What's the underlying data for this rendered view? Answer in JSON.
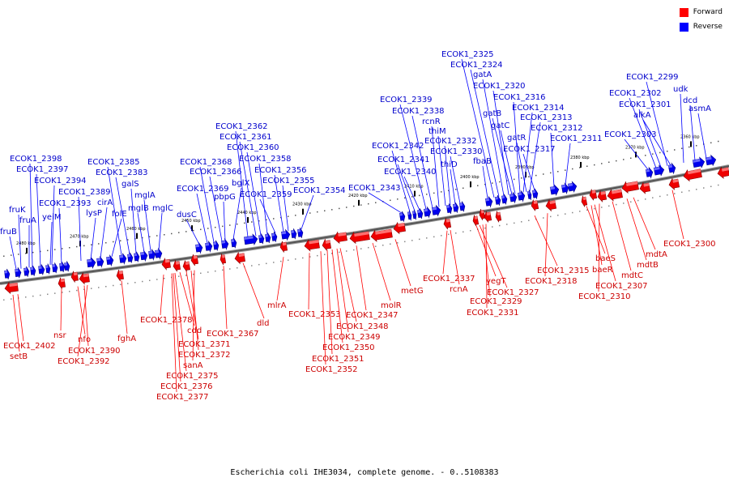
{
  "legend": {
    "forward": {
      "label": "Forward",
      "color": "#ff0000"
    },
    "reverse": {
      "label": "Reverse",
      "color": "#0000ff"
    }
  },
  "caption": "Escherichia coli IHE3034, complete genome. - 0..5108383",
  "ticks": [
    "2490 kbp",
    "2480 kbp",
    "2470 kbp",
    "2460 kbp",
    "2450 kbp",
    "2440 kbp",
    "2430 kbp",
    "2420 kbp",
    "2410 kbp",
    "2400 kbp",
    "2390 kbp",
    "2380 kbp",
    "2370 kbp",
    "2360 kbp"
  ],
  "reverse_genes": [
    "fruB",
    "fruK",
    "fruA",
    "ECOK1_2398",
    "ECOK1_2397",
    "yeiM",
    "ECOK1_2394",
    "ECOK1_2393",
    "lysP",
    "ECOK1_2389",
    "cirA",
    "folE",
    "ECOK1_2385",
    "ECOK1_2383",
    "galS",
    "mglB",
    "mglA",
    "mglC",
    "dusC",
    "ECOK1_2369",
    "ECOK1_2368",
    "ECOK1_2366",
    "pbpG",
    "bglX",
    "ECOK1_2362",
    "ECOK1_2361",
    "ECOK1_2360",
    "ECOK1_2358",
    "ECOK1_2359",
    "ECOK1_2356",
    "ECOK1_2355",
    "ECOK1_2354",
    "ECOK1_2343",
    "ECOK1_2342",
    "ECOK1_2341",
    "ECOK1_2340",
    "ECOK1_2339",
    "ECOK1_2338",
    "rcnR",
    "thiM",
    "ECOK1_2332",
    "thiD",
    "ECOK1_2330",
    "fbaB",
    "ECOK1_2325",
    "ECOK1_2324",
    "gatA",
    "ECOK1_2320",
    "gatB",
    "gatC",
    "ECOK1_2316",
    "ECOK1_2314",
    "gatR",
    "ECOK1_2313",
    "ECOK1_2317",
    "ECOK1_2312",
    "ECOK1_2311",
    "ECOK1_2303",
    "ECOK1_2302",
    "ECOK1_2301",
    "ECOK1_2299",
    "alkA",
    "udk",
    "dcd",
    "asmA"
  ],
  "forward_genes": [
    "setB",
    "ECOK1_2402",
    "nsr",
    "nfo",
    "ECOK1_2390",
    "ECOK1_2392",
    "fghA",
    "ECOK1_2378",
    "cdd",
    "ECOK1_2371",
    "ECOK1_2372",
    "sanA",
    "ECOK1_2375",
    "ECOK1_2376",
    "ECOK1_2377",
    "ECOK1_2367",
    "dld",
    "mlrA",
    "ECOK1_2353",
    "ECOK1_2348",
    "ECOK1_2349",
    "ECOK1_2350",
    "ECOK1_2351",
    "ECOK1_2352",
    "ECOK1_2347",
    "molR",
    "metG",
    "ECOK1_2337",
    "rcnA",
    "yegT",
    "ECOK1_2327",
    "ECOK1_2329",
    "ECOK1_2331",
    "ECOK1_2315",
    "ECOK1_2318",
    "baeS",
    "baeR",
    "ECOK1_2307",
    "ECOK1_2310",
    "mdtC",
    "mdtB",
    "mdtA",
    "ECOK1_2300"
  ]
}
